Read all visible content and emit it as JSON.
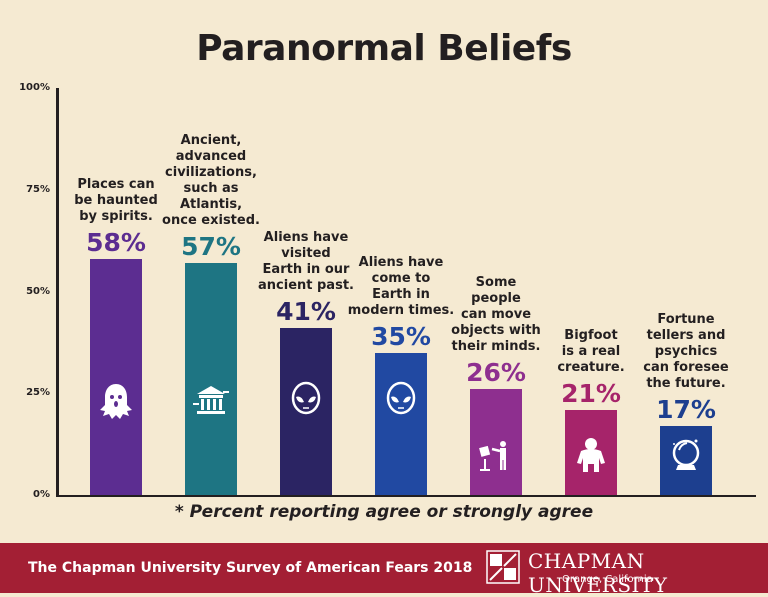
{
  "header": {
    "title": "Paranormal Beliefs"
  },
  "footnote": "* Percent reporting agree or strongly agree",
  "footer": {
    "survey": "The Chapman University Survey of American Fears 2018",
    "university": "CHAPMAN UNIVERSITY",
    "location": "Orange, California"
  },
  "colors": {
    "background": "#f5ead2",
    "footer": "#a31f34",
    "axis": "#231f20"
  },
  "chart_data": {
    "type": "bar",
    "title": "Paranormal Beliefs",
    "ylim": [
      0,
      100
    ],
    "yticks": [
      "0%",
      "25%",
      "50%",
      "75%",
      "100%"
    ],
    "categories": [
      "Places can be haunted by spirits.",
      "Ancient, advanced civilizations, such as Atlantis, once existed.",
      "Aliens have visited Earth in our ancient past.",
      "Aliens have come to Earth in modern times.",
      "Some people can move objects with their minds.",
      "Bigfoot is a real creature.",
      "Fortune tellers and psychics can foresee the future."
    ],
    "values": [
      58,
      57,
      41,
      35,
      26,
      21,
      17
    ],
    "value_labels": [
      "58%",
      "57%",
      "41%",
      "35%",
      "26%",
      "21%",
      "17%"
    ],
    "colors": [
      "#5c2d91",
      "#1e7583",
      "#2b2463",
      "#2149a2",
      "#8e2f8f",
      "#a6246a",
      "#1d3f8f"
    ],
    "label_lines": [
      [
        "Places can",
        "be haunted",
        "by spirits."
      ],
      [
        "Ancient,",
        "advanced",
        "civilizations,",
        "such as",
        "Atlantis,",
        "once existed."
      ],
      [
        "Aliens have",
        "visited",
        "Earth in our",
        "ancient past."
      ],
      [
        "Aliens have",
        "come to",
        "Earth in",
        "modern times."
      ],
      [
        "Some",
        "people",
        "can move",
        "objects with",
        "their minds."
      ],
      [
        "Bigfoot",
        "is a real",
        "creature."
      ],
      [
        "Fortune",
        "tellers and",
        "psychics",
        "can foresee",
        "the future."
      ]
    ],
    "icons": [
      "ghost-icon",
      "temple-icon",
      "alien-icon",
      "alien-icon",
      "telekinesis-icon",
      "bigfoot-icon",
      "crystal-ball-icon"
    ],
    "footnote": "* Percent reporting agree or strongly agree",
    "grid": false,
    "legend": "none"
  }
}
